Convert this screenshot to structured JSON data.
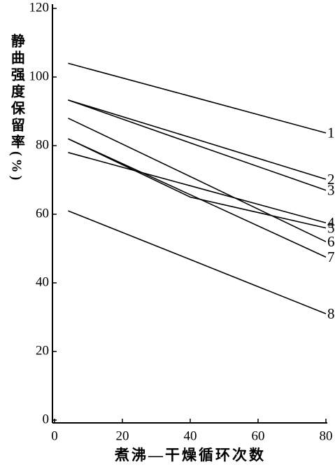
{
  "chart_data": {
    "type": "line",
    "ylabel": "静曲强度保留率(%)",
    "xlabel": "煮沸—干燥循环次数",
    "x": [
      4,
      40,
      80
    ],
    "xlim": [
      0,
      80
    ],
    "xticks": [
      0,
      20,
      40,
      60,
      80
    ],
    "ylim": [
      0,
      120
    ],
    "yticks": [
      0,
      20,
      40,
      60,
      80,
      100,
      120
    ],
    "series": [
      {
        "name": "1",
        "color": "#000000",
        "values": [
          104,
          94.4,
          83.7
        ]
      },
      {
        "name": "2",
        "color": "#000000",
        "values": [
          93.3,
          82.4,
          70.2
        ]
      },
      {
        "name": "3",
        "color": "#000000",
        "values": [
          93.3,
          80.8,
          67
        ]
      },
      {
        "name": "4",
        "color": "#000000",
        "values": [
          78,
          68.3,
          57.5
        ]
      },
      {
        "name": "5",
        "color": "#000000",
        "values": [
          82,
          65,
          56
        ]
      },
      {
        "name": "6",
        "color": "#000000",
        "values": [
          88,
          71,
          52
        ]
      },
      {
        "name": "7",
        "color": "#000000",
        "values": [
          82,
          65.7,
          47.5
        ]
      },
      {
        "name": "8",
        "color": "#000000",
        "values": [
          61,
          46.8,
          31
        ]
      }
    ]
  }
}
